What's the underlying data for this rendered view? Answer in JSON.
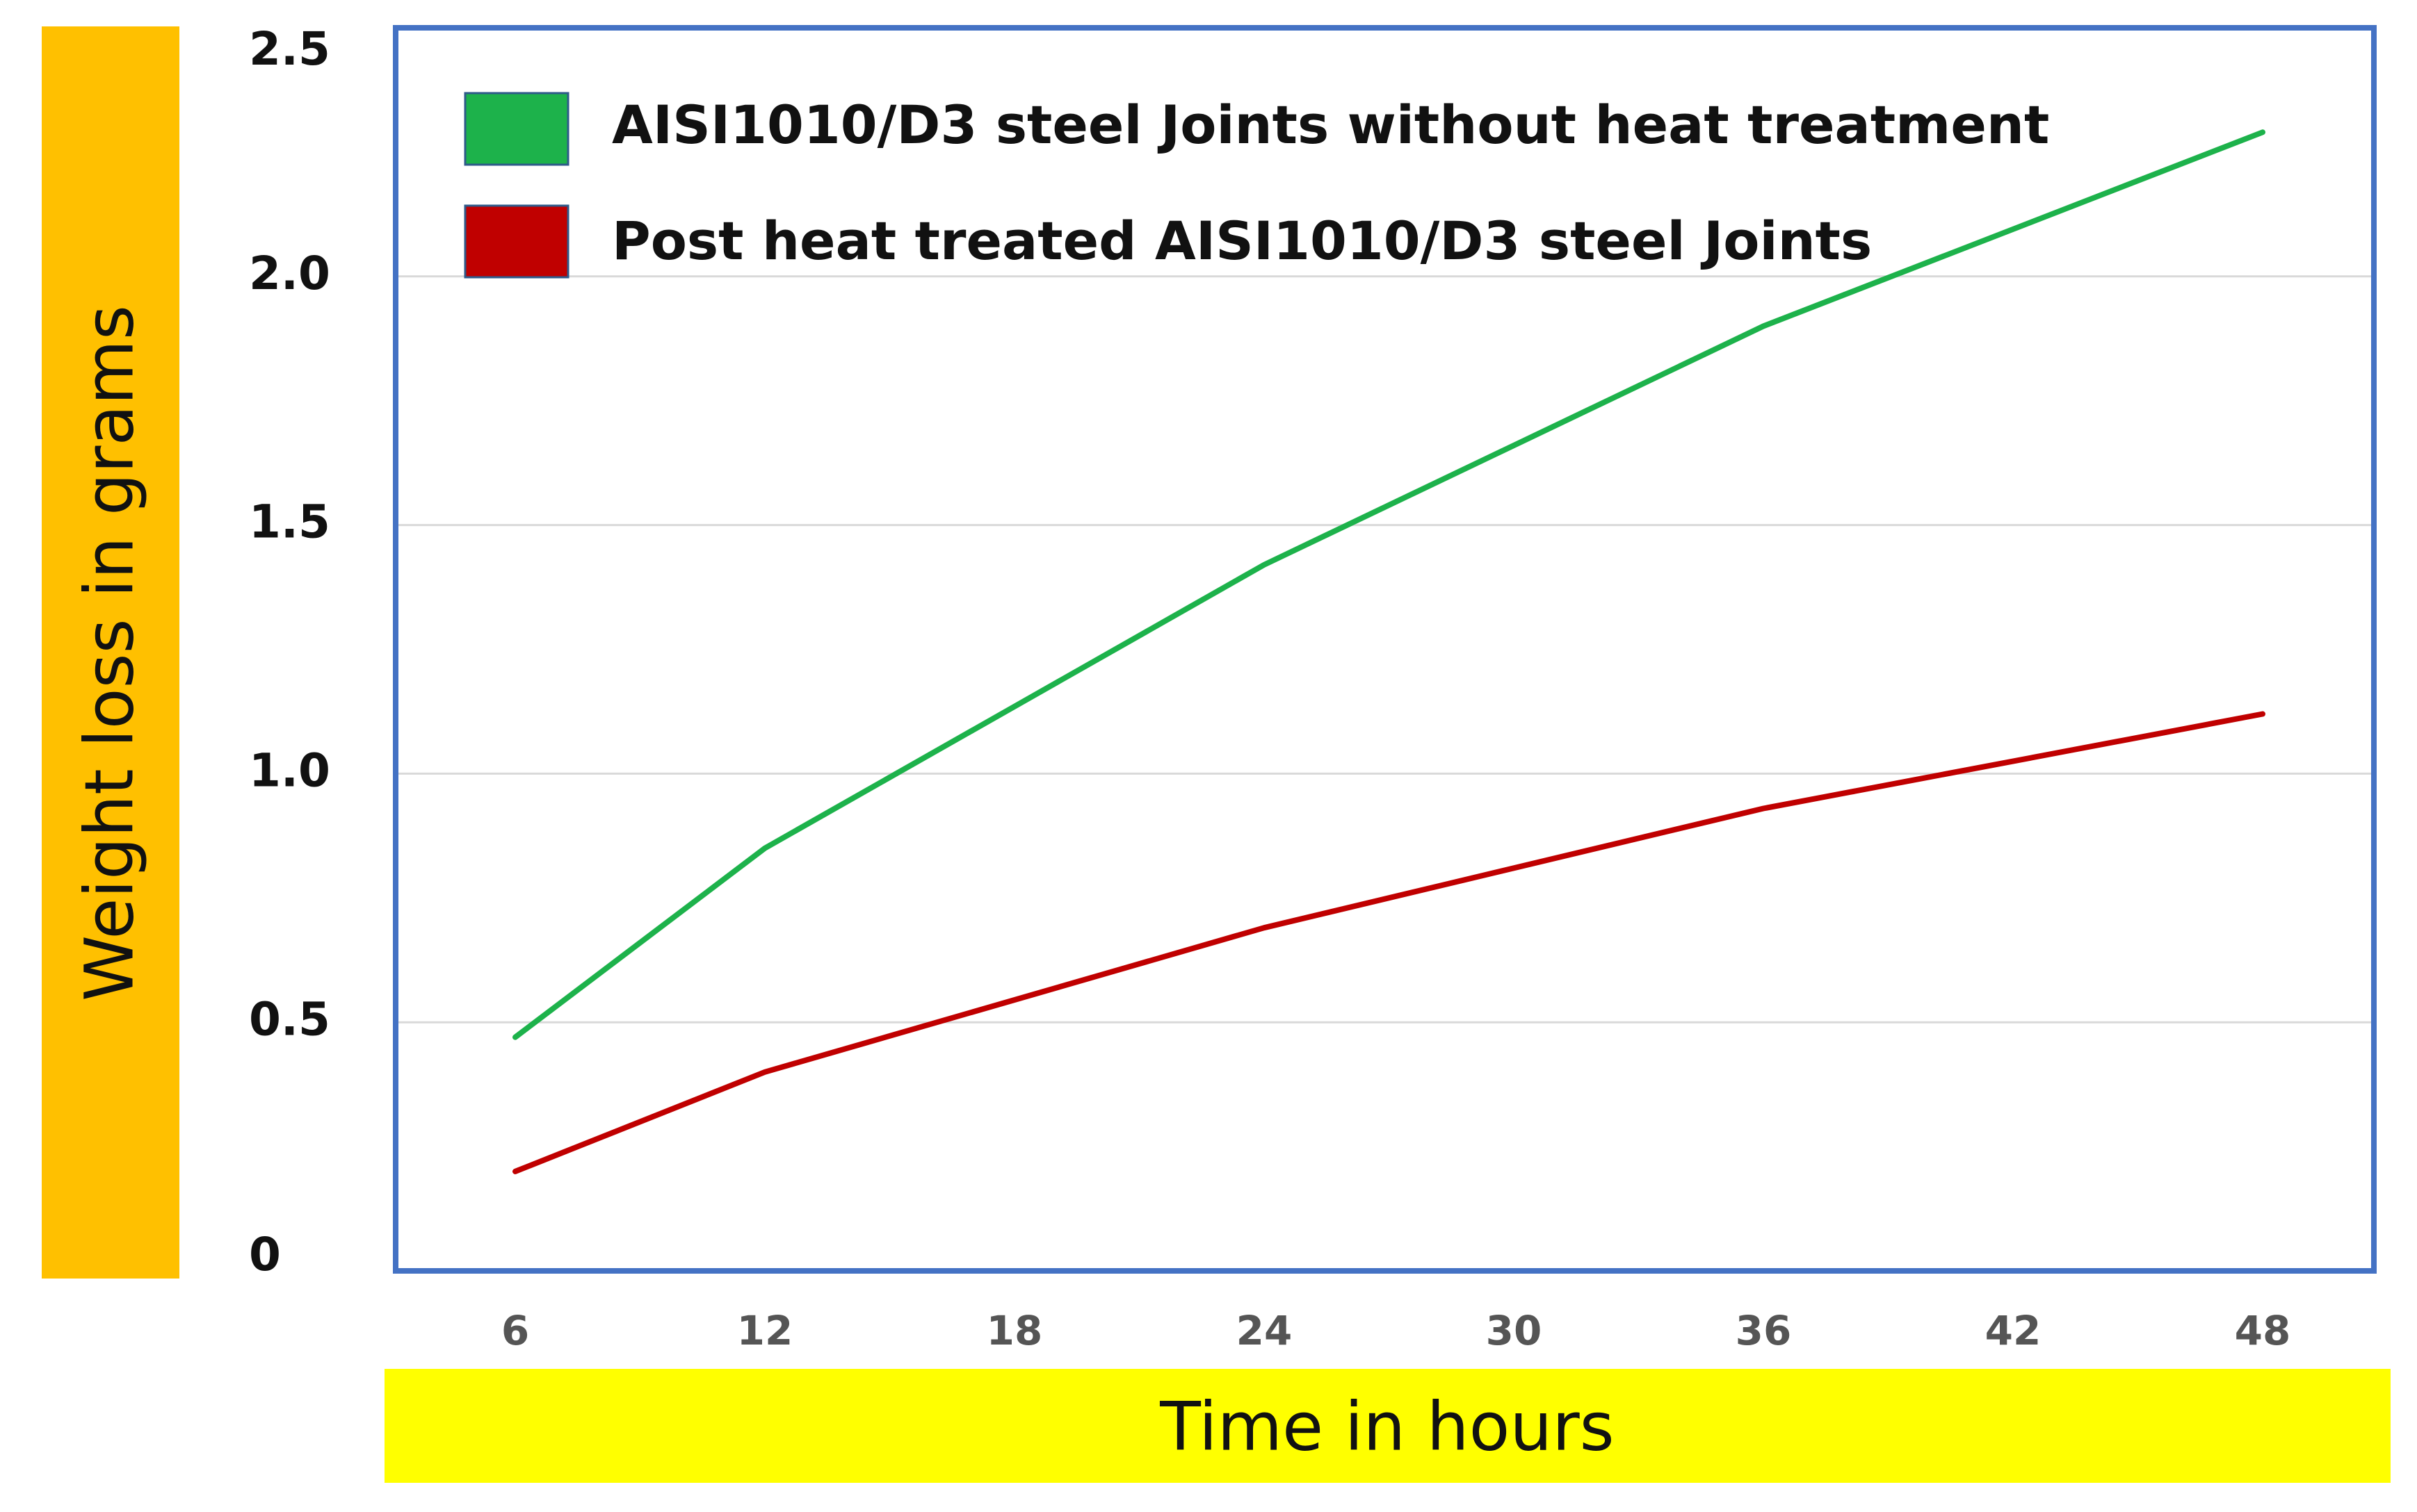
{
  "chart_data": {
    "type": "line",
    "title": "",
    "xlabel": "Time in hours",
    "ylabel": "Weight loss in grams",
    "x": [
      6,
      12,
      18,
      24,
      30,
      36,
      42,
      48
    ],
    "x_tick_labels": [
      "6",
      "12",
      "18",
      "24",
      "30",
      "36",
      "42",
      "48"
    ],
    "y_tick_labels": [
      "0",
      "0.5",
      "1.0",
      "1.5",
      "2.0",
      "2.5"
    ],
    "y_ticks": [
      0,
      0.5,
      1.0,
      1.5,
      2.0,
      2.5
    ],
    "ylim": [
      0,
      2.5
    ],
    "grid": true,
    "legend_position": "top-left",
    "series": [
      {
        "name": "AISI1010/D3 steel Joints without heat treatment",
        "color": "#1db24b",
        "x": [
          6,
          12,
          24,
          36,
          48
        ],
        "values": [
          0.47,
          0.85,
          1.42,
          1.9,
          2.29
        ]
      },
      {
        "name": "Post heat treated AISI1010/D3 steel Joints",
        "color": "#c00000",
        "x": [
          6,
          12,
          24,
          36,
          48
        ],
        "values": [
          0.2,
          0.4,
          0.69,
          0.93,
          1.12
        ]
      }
    ]
  },
  "colors": {
    "plot_border": "#4472c4",
    "gridline": "#d9d9d9",
    "ylabel_background": "#ffc000",
    "xlabel_background": "#ffff00"
  }
}
